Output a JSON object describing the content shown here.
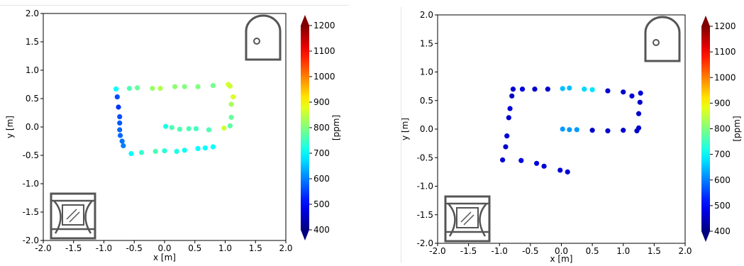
{
  "chart_data": [
    {
      "type": "scatter",
      "title": "",
      "xlabel": "x [m]",
      "ylabel": "y [m]",
      "xlim": [
        -2.0,
        2.0
      ],
      "ylim": [
        -2.0,
        2.0
      ],
      "xticks": [
        "-2.0",
        "-1.5",
        "-1.0",
        "-0.5",
        "0.0",
        "0.5",
        "1.0",
        "1.5",
        "2.0"
      ],
      "yticks": [
        "-2.0",
        "-1.5",
        "-1.0",
        "-0.5",
        "0.0",
        "0.5",
        "1.0",
        "1.5",
        "2.0"
      ],
      "grid": false,
      "colorbar": {
        "label": "[ppm]",
        "min": 400,
        "max": 1200,
        "ticks": [
          "400",
          "500",
          "600",
          "700",
          "800",
          "900",
          "1000",
          "1100",
          "1200"
        ]
      },
      "icons": [
        "door-icon",
        "window-icon"
      ],
      "points": [
        {
          "x": -0.8,
          "y": 0.67,
          "v": 700
        },
        {
          "x": -0.78,
          "y": 0.53,
          "v": 560
        },
        {
          "x": -0.76,
          "y": 0.35,
          "v": 540
        },
        {
          "x": -0.74,
          "y": 0.18,
          "v": 560
        },
        {
          "x": -0.74,
          "y": 0.07,
          "v": 570
        },
        {
          "x": -0.74,
          "y": -0.05,
          "v": 580
        },
        {
          "x": -0.73,
          "y": -0.15,
          "v": 580
        },
        {
          "x": -0.7,
          "y": -0.25,
          "v": 590
        },
        {
          "x": -0.68,
          "y": -0.33,
          "v": 600
        },
        {
          "x": -0.55,
          "y": -0.47,
          "v": 700
        },
        {
          "x": -0.38,
          "y": -0.45,
          "v": 740
        },
        {
          "x": -0.15,
          "y": -0.43,
          "v": 760
        },
        {
          "x": 0.0,
          "y": -0.42,
          "v": 730
        },
        {
          "x": 0.2,
          "y": -0.43,
          "v": 720
        },
        {
          "x": 0.33,
          "y": -0.41,
          "v": 710
        },
        {
          "x": 0.55,
          "y": -0.38,
          "v": 700
        },
        {
          "x": 0.67,
          "y": -0.37,
          "v": 700
        },
        {
          "x": 0.8,
          "y": -0.35,
          "v": 700
        },
        {
          "x": -0.58,
          "y": 0.68,
          "v": 760
        },
        {
          "x": -0.45,
          "y": 0.69,
          "v": 780
        },
        {
          "x": -0.2,
          "y": 0.68,
          "v": 820
        },
        {
          "x": -0.07,
          "y": 0.68,
          "v": 840
        },
        {
          "x": 0.17,
          "y": 0.71,
          "v": 810
        },
        {
          "x": 0.33,
          "y": 0.71,
          "v": 800
        },
        {
          "x": 0.55,
          "y": 0.71,
          "v": 800
        },
        {
          "x": 0.8,
          "y": 0.73,
          "v": 790
        },
        {
          "x": 1.05,
          "y": 0.75,
          "v": 870
        },
        {
          "x": 1.08,
          "y": 0.72,
          "v": 860
        },
        {
          "x": 1.13,
          "y": 0.53,
          "v": 870
        },
        {
          "x": 1.1,
          "y": 0.4,
          "v": 830
        },
        {
          "x": 1.1,
          "y": 0.17,
          "v": 780
        },
        {
          "x": 1.08,
          "y": 0.02,
          "v": 770
        },
        {
          "x": 0.98,
          "y": -0.02,
          "v": 860
        },
        {
          "x": 0.73,
          "y": -0.05,
          "v": 760
        },
        {
          "x": 0.52,
          "y": -0.03,
          "v": 750
        },
        {
          "x": 0.4,
          "y": -0.03,
          "v": 760
        },
        {
          "x": 0.25,
          "y": -0.04,
          "v": 760
        },
        {
          "x": 0.12,
          "y": -0.01,
          "v": 760
        },
        {
          "x": 0.02,
          "y": 0.01,
          "v": 720
        }
      ]
    },
    {
      "type": "scatter",
      "title": "",
      "xlabel": "x [m]",
      "ylabel": "y [m]",
      "xlim": [
        -2.0,
        2.0
      ],
      "ylim": [
        -2.0,
        2.0
      ],
      "xticks": [
        "-2.0",
        "-1.5",
        "-1.0",
        "-0.5",
        "0.0",
        "0.5",
        "1.0",
        "1.5",
        "2.0"
      ],
      "yticks": [
        "-2.0",
        "-1.5",
        "-1.0",
        "-0.5",
        "0.0",
        "0.5",
        "1.0",
        "1.5",
        "2.0"
      ],
      "grid": false,
      "colorbar": {
        "label": "[ppm]",
        "min": 400,
        "max": 1200,
        "ticks": [
          "400",
          "500",
          "600",
          "700",
          "800",
          "900",
          "1000",
          "1100",
          "1200"
        ]
      },
      "icons": [
        "door-icon",
        "window-icon"
      ],
      "points": [
        {
          "x": -0.78,
          "y": 0.7,
          "v": 460
        },
        {
          "x": -0.8,
          "y": 0.58,
          "v": 450
        },
        {
          "x": -0.83,
          "y": 0.36,
          "v": 470
        },
        {
          "x": -0.85,
          "y": 0.2,
          "v": 460
        },
        {
          "x": -0.88,
          "y": -0.12,
          "v": 470
        },
        {
          "x": -0.9,
          "y": -0.31,
          "v": 460
        },
        {
          "x": -0.95,
          "y": -0.54,
          "v": 460
        },
        {
          "x": -0.65,
          "y": -0.55,
          "v": 480
        },
        {
          "x": -0.4,
          "y": -0.6,
          "v": 470
        },
        {
          "x": -0.28,
          "y": -0.65,
          "v": 470
        },
        {
          "x": -0.02,
          "y": -0.72,
          "v": 470
        },
        {
          "x": 0.1,
          "y": -0.75,
          "v": 470
        },
        {
          "x": -0.63,
          "y": 0.7,
          "v": 470
        },
        {
          "x": -0.43,
          "y": 0.7,
          "v": 460
        },
        {
          "x": -0.22,
          "y": 0.7,
          "v": 460
        },
        {
          "x": 0.02,
          "y": 0.71,
          "v": 650
        },
        {
          "x": 0.13,
          "y": 0.72,
          "v": 650
        },
        {
          "x": 0.37,
          "y": 0.7,
          "v": 670
        },
        {
          "x": 0.5,
          "y": 0.69,
          "v": 680
        },
        {
          "x": 0.75,
          "y": 0.67,
          "v": 460
        },
        {
          "x": 1.0,
          "y": 0.65,
          "v": 460
        },
        {
          "x": 1.14,
          "y": 0.58,
          "v": 470
        },
        {
          "x": 1.28,
          "y": 0.63,
          "v": 470
        },
        {
          "x": 1.27,
          "y": 0.47,
          "v": 460
        },
        {
          "x": 1.25,
          "y": 0.27,
          "v": 460
        },
        {
          "x": 1.25,
          "y": 0.02,
          "v": 460
        },
        {
          "x": 1.22,
          "y": -0.03,
          "v": 460
        },
        {
          "x": 1.0,
          "y": -0.02,
          "v": 460
        },
        {
          "x": 0.75,
          "y": -0.03,
          "v": 460
        },
        {
          "x": 0.5,
          "y": -0.02,
          "v": 460
        },
        {
          "x": 0.25,
          "y": -0.01,
          "v": 620
        },
        {
          "x": 0.13,
          "y": -0.01,
          "v": 620
        },
        {
          "x": 0.02,
          "y": 0.0,
          "v": 620
        }
      ]
    }
  ]
}
